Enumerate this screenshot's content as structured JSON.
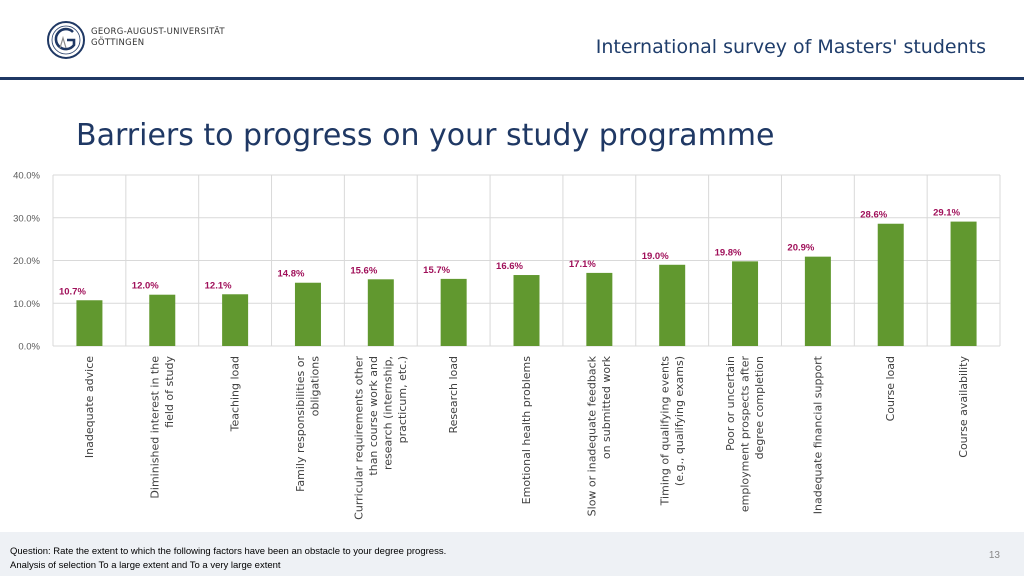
{
  "header": {
    "university_line1": "GEORG-AUGUST-UNIVERSITÄT",
    "university_line2": "GÖTTINGEN",
    "subtitle": "International survey of Masters' students",
    "accent_color": "#1f3864"
  },
  "chart_data": {
    "type": "bar",
    "title": "Barriers to progress on your study programme",
    "categories": [
      "Inadequate advice",
      "Diminished interest in the field of study",
      "Teaching load",
      "Family responsibilities or obligations",
      "Curricular requirements other than course work and research (internship, practicum, etc.)",
      "Research load",
      "Emotional health problems",
      "Slow or inadequate feedback on submitted work",
      "Timing of qualifying events (e.g., qualifying exams)",
      "Poor or uncertain employment prospects after degree completion",
      "Inadequate financial support",
      "Course load",
      "Course availability"
    ],
    "category_label_lines": [
      [
        "Inadequate advice"
      ],
      [
        "Diminished interest in the",
        "field of study"
      ],
      [
        "Teaching load"
      ],
      [
        "Family responsibilities or",
        "obligations"
      ],
      [
        "Curricular requirements other",
        "than course work and",
        "research (internship,",
        "practicum, etc.)"
      ],
      [
        "Research load"
      ],
      [
        "Emotional health problems"
      ],
      [
        "Slow or inadequate feedback",
        "on submitted work"
      ],
      [
        "Timing of qualifying events",
        "(e.g., qualifying exams)"
      ],
      [
        "Poor or uncertain",
        "employment prospects after",
        "degree completion"
      ],
      [
        "Inadequate financial support"
      ],
      [
        "Course load"
      ],
      [
        "Course availability"
      ]
    ],
    "values": [
      10.7,
      12.0,
      12.1,
      14.8,
      15.6,
      15.7,
      16.6,
      17.1,
      19.0,
      19.8,
      20.9,
      28.6,
      29.1
    ],
    "data_labels": [
      "10.7%",
      "12.0%",
      "12.1%",
      "14.8%",
      "15.6%",
      "15.7%",
      "16.6%",
      "17.1%",
      "19.0%",
      "19.8%",
      "20.9%",
      "28.6%",
      "29.1%"
    ],
    "ylim": [
      0,
      40
    ],
    "yticks": [
      0,
      10,
      20,
      30,
      40
    ],
    "ytick_labels": [
      "0.0%",
      "10.0%",
      "20.0%",
      "30.0%",
      "40.0%"
    ],
    "grid": true,
    "bar_color": "#61982f",
    "label_color": "#a0105a"
  },
  "footer": {
    "question": "Question: Rate the extent to which the following factors have been an obstacle to your degree progress.",
    "analysis": "Analysis of selection To a large extent and To a very large extent",
    "page_number": "13"
  }
}
